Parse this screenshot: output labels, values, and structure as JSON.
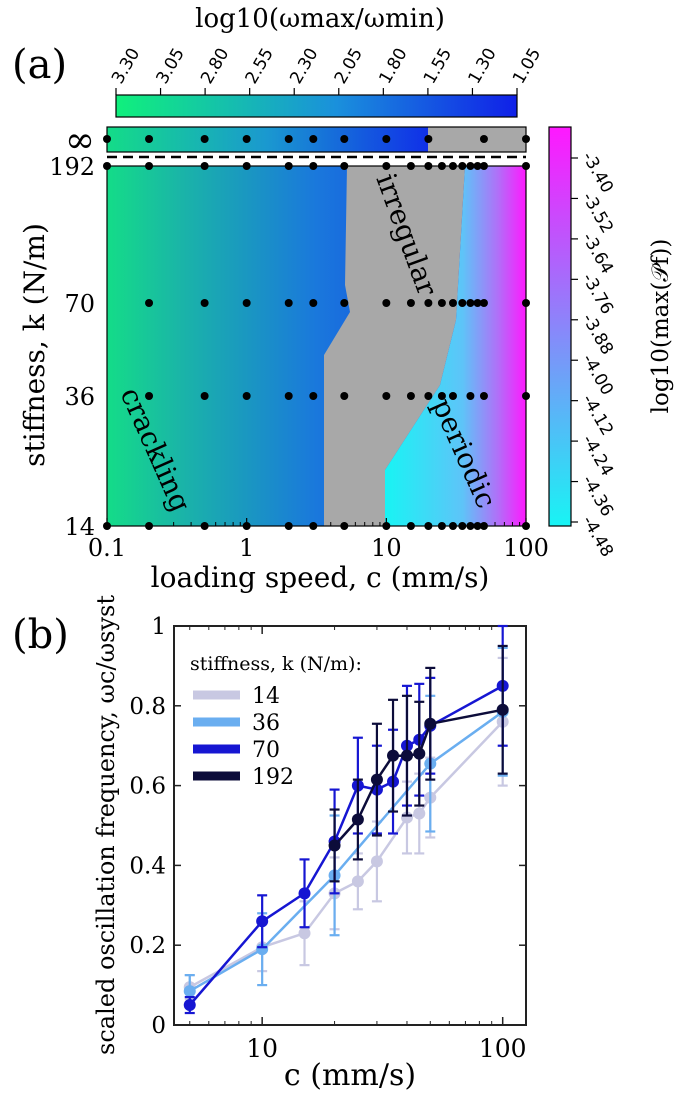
{
  "panel_a": {
    "label": "(a)",
    "colorbar_top": {
      "title": "log10(ωmax/ωmin)",
      "ticks": [
        "3.30",
        "3.05",
        "2.80",
        "2.55",
        "2.30",
        "2.05",
        "1.80",
        "1.55",
        "1.30",
        "1.05"
      ],
      "color_from": "#10f07c",
      "color_to": "#1020e8"
    },
    "colorbar_right": {
      "title": "log10(max(𝒫f))",
      "ticks": [
        "-3.40",
        "-3.52",
        "-3.64",
        "-3.76",
        "-3.88",
        "-4.00",
        "-4.12",
        "-4.24",
        "-4.36",
        "-4.48"
      ],
      "color_from": "#ff18ff",
      "color_to": "#18f4f4"
    },
    "xlabel": "loading speed, c (mm/s)",
    "ylabel": "stiffness, k (N/m)",
    "x_ticks": [
      "0.1",
      "1",
      "10",
      "100"
    ],
    "y_ticks": [
      "14",
      "36",
      "70",
      "192",
      "∞"
    ],
    "regions": {
      "crackling": "crackling",
      "irregular": "irregular",
      "periodic": "periodic"
    },
    "irregular_color": "#a8a8a8"
  },
  "chart_data": [
    {
      "type": "heatmap",
      "panel": "a",
      "xscale": "log",
      "xlim": [
        0.1,
        100
      ],
      "y_categories": [
        "14",
        "36",
        "70",
        "192",
        "∞"
      ],
      "measurement_points": [
        {
          "k": "∞",
          "c": [
            0.1,
            0.2,
            0.5,
            1,
            2,
            3,
            5,
            10,
            20,
            50,
            100
          ]
        },
        {
          "k": "192",
          "c": [
            0.1,
            0.2,
            0.5,
            1,
            2,
            3,
            5,
            10,
            15,
            20,
            25,
            30,
            35,
            40,
            45,
            50,
            100
          ]
        },
        {
          "k": "70",
          "c": [
            0.2,
            0.5,
            1,
            2,
            3,
            5,
            10,
            15,
            20,
            25,
            30,
            35,
            40,
            45,
            50,
            100
          ]
        },
        {
          "k": "36",
          "c": [
            0.2,
            0.5,
            1,
            2,
            3,
            5,
            10,
            15,
            20,
            25,
            30,
            40,
            50,
            100
          ]
        },
        {
          "k": "14",
          "c": [
            0.1,
            0.2,
            0.5,
            1,
            2,
            3,
            5,
            10,
            15,
            20,
            25,
            30,
            35,
            40,
            45,
            50,
            100
          ]
        }
      ]
    },
    {
      "type": "line",
      "panel": "b",
      "label": "(b)",
      "xlabel": "c (mm/s)",
      "ylabel": "scaled oscillation frequency, ωc/ωsyst",
      "xscale": "log",
      "xlim": [
        4.3,
        125
      ],
      "ylim": [
        0,
        1
      ],
      "x_ticks": [
        "10",
        "100"
      ],
      "y_ticks": [
        "0",
        "0.2",
        "0.4",
        "0.6",
        "0.8",
        "1"
      ],
      "legend_title": "stiffness, k (N/m):",
      "legend_position": "top-left",
      "series": [
        {
          "name": "14",
          "color": "#c8c8e2",
          "x": [
            5,
            10,
            15,
            20,
            25,
            30,
            40,
            45,
            50,
            100
          ],
          "y": [
            0.095,
            0.195,
            0.23,
            0.33,
            0.36,
            0.41,
            0.52,
            0.53,
            0.57,
            0.76
          ],
          "err": [
            0.03,
            0.06,
            0.08,
            0.09,
            0.07,
            0.1,
            0.09,
            0.1,
            0.1,
            0.16
          ]
        },
        {
          "name": "36",
          "color": "#6aaef0",
          "x": [
            5,
            10,
            20,
            50,
            100
          ],
          "y": [
            0.085,
            0.19,
            0.375,
            0.655,
            0.785
          ],
          "err": [
            0.04,
            0.09,
            0.15,
            0.17,
            0.16
          ]
        },
        {
          "name": "70",
          "color": "#1616d2",
          "x": [
            5,
            10,
            15,
            20,
            25,
            30,
            35,
            40,
            45,
            50,
            100
          ],
          "y": [
            0.05,
            0.26,
            0.33,
            0.46,
            0.6,
            0.59,
            0.61,
            0.7,
            0.715,
            0.75,
            0.85
          ],
          "err": [
            0.02,
            0.065,
            0.085,
            0.13,
            0.12,
            0.11,
            0.13,
            0.15,
            0.14,
            0.12,
            0.15
          ]
        },
        {
          "name": "192",
          "color": "#0c0c3a",
          "x": [
            20,
            25,
            30,
            35,
            40,
            45,
            50,
            100
          ],
          "y": [
            0.45,
            0.515,
            0.615,
            0.675,
            0.675,
            0.68,
            0.755,
            0.79
          ],
          "err": [
            0.09,
            0.1,
            0.14,
            0.14,
            0.15,
            0.13,
            0.14,
            0.16
          ]
        }
      ]
    }
  ]
}
